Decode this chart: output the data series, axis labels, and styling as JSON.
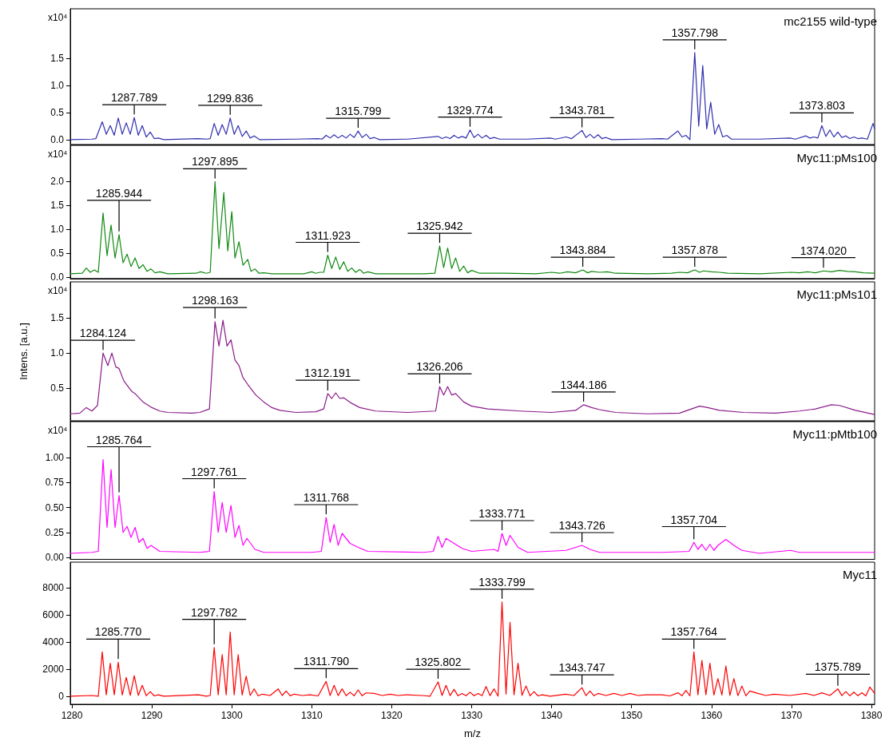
{
  "chart_data": [
    {
      "type": "line",
      "xlim": [
        1279.8,
        1380.4
      ],
      "xticks": [
        1280,
        1290,
        1300,
        1310,
        1320,
        1330,
        1340,
        1350,
        1360,
        1370,
        1380
      ],
      "ylim": [
        -0.09,
        2.42
      ],
      "yticks": [
        {
          "value": 0,
          "label": "0.0"
        },
        {
          "value": 0.5,
          "label": "0.5"
        },
        {
          "value": 1,
          "label": "1.0"
        },
        {
          "value": 1.5,
          "label": "1.5"
        }
      ],
      "tick_labels": "y",
      "series": [
        {
          "name": "mc2155 wild-type",
          "color": "#3030b0",
          "x": [
            1279.8,
            1282.5,
            1283.0,
            1283.8,
            1284.3,
            1284.8,
            1285.3,
            1285.8,
            1286.3,
            1286.8,
            1287.3,
            1287.8,
            1288.3,
            1288.8,
            1289.3,
            1289.8,
            1290.3,
            1290.8,
            1291.5,
            1295.8,
            1296.8,
            1297.3,
            1297.8,
            1298.3,
            1298.8,
            1299.3,
            1299.8,
            1300.3,
            1300.8,
            1301.3,
            1301.8,
            1302.3,
            1302.8,
            1303.5,
            1308,
            1310.8,
            1311.3,
            1311.8,
            1312.3,
            1312.8,
            1313.3,
            1313.8,
            1314.3,
            1314.8,
            1315.3,
            1315.8,
            1316.3,
            1316.8,
            1317.3,
            1317.8,
            1318.5,
            1322,
            1325.8,
            1326.3,
            1326.8,
            1327.3,
            1327.8,
            1328.3,
            1328.8,
            1329.3,
            1329.8,
            1330.3,
            1330.8,
            1331.3,
            1331.8,
            1332.3,
            1332.8,
            1333.5,
            1337,
            1339.8,
            1340.5,
            1341.8,
            1342.5,
            1343.8,
            1344.3,
            1344.8,
            1345.3,
            1345.8,
            1346.3,
            1346.8,
            1347.5,
            1351,
            1353.8,
            1354.5,
            1355.8,
            1356.3,
            1356.8,
            1357.3,
            1357.9,
            1358.4,
            1358.9,
            1359.4,
            1359.9,
            1360.4,
            1360.9,
            1361.4,
            1361.9,
            1362.5,
            1366,
            1369.8,
            1370.5,
            1371.8,
            1372.3,
            1372.8,
            1373.3,
            1373.8,
            1374.3,
            1374.8,
            1375.3,
            1375.8,
            1376.3,
            1376.8,
            1377.3,
            1377.8,
            1378.3,
            1378.8,
            1379.5,
            1380.2,
            1380.4
          ],
          "values": [
            0,
            0.01,
            0.02,
            0.33,
            0.1,
            0.26,
            0.08,
            0.4,
            0.1,
            0.31,
            0.1,
            0.41,
            0.08,
            0.26,
            0.05,
            0.14,
            0.02,
            0.03,
            0,
            0.02,
            0.01,
            0.02,
            0.3,
            0.08,
            0.28,
            0.1,
            0.4,
            0.1,
            0.26,
            0.06,
            0.16,
            0.03,
            0.07,
            0,
            0.01,
            0.02,
            0.01,
            0.08,
            0.03,
            0.09,
            0.03,
            0.08,
            0.03,
            0.1,
            0.04,
            0.16,
            0.04,
            0.1,
            0.02,
            0.04,
            0,
            0.01,
            0.06,
            0.02,
            0.05,
            0.02,
            0.08,
            0.03,
            0.06,
            0.03,
            0.18,
            0.04,
            0.1,
            0.03,
            0.08,
            0.02,
            0.04,
            0.01,
            0.01,
            0.03,
            0.01,
            0.05,
            0.02,
            0.17,
            0.04,
            0.1,
            0.03,
            0.09,
            0.02,
            0.04,
            0,
            0.01,
            0.02,
            0.01,
            0.16,
            0.05,
            0.08,
            0,
            1.61,
            0.25,
            1.37,
            0.2,
            0.69,
            0.1,
            0.28,
            0.05,
            0.08,
            0.01,
            0.01,
            0.03,
            0.01,
            0.07,
            0.03,
            0.05,
            0.03,
            0.26,
            0.06,
            0.18,
            0.05,
            0.14,
            0.04,
            0.07,
            0.02,
            0.05,
            0.02,
            0.03,
            0.01,
            0.3,
            0.2
          ]
        }
      ],
      "annotations": [
        "x10⁴",
        {
          "text": "1287.789",
          "x": 1287.8,
          "y": 0.41
        },
        {
          "text": "1299.836",
          "x": 1299.8,
          "y": 0.4
        },
        {
          "text": "1315.799",
          "x": 1315.8,
          "y": 0.16
        },
        {
          "text": "1329.774",
          "x": 1329.8,
          "y": 0.18
        },
        {
          "text": "1343.781",
          "x": 1343.8,
          "y": 0.17
        },
        {
          "text": "1357.798",
          "x": 1357.9,
          "y": 1.61
        },
        {
          "text": "1373.803",
          "x": 1373.8,
          "y": 0.26
        }
      ]
    },
    {
      "type": "line",
      "xlim": [
        1279.8,
        1380.4
      ],
      "xticks": [
        1280,
        1290,
        1300,
        1310,
        1320,
        1330,
        1340,
        1350,
        1360,
        1370,
        1380
      ],
      "ylim": [
        -0.03,
        2.76
      ],
      "yticks": [
        {
          "value": 0,
          "label": "0.0"
        },
        {
          "value": 0.5,
          "label": "0.5"
        },
        {
          "value": 1,
          "label": "1.0"
        },
        {
          "value": 1.5,
          "label": "1.5"
        },
        {
          "value": 2,
          "label": "2.0"
        }
      ],
      "tick_labels": "y",
      "series": [
        {
          "name": "Myc11:pMs100",
          "color": "#108a10",
          "x": [
            1279.8,
            1281.3,
            1281.8,
            1282.3,
            1282.8,
            1283.3,
            1283.9,
            1284.4,
            1284.9,
            1285.4,
            1285.9,
            1286.4,
            1286.9,
            1287.4,
            1287.9,
            1288.4,
            1288.9,
            1289.4,
            1289.9,
            1290.4,
            1291.0,
            1292,
            1295.5,
            1296.1,
            1296.8,
            1297.3,
            1297.9,
            1298.4,
            1299.0,
            1299.5,
            1300.0,
            1300.4,
            1300.9,
            1301.4,
            1302.0,
            1302.4,
            1302.9,
            1303.4,
            1304.0,
            1305,
            1309,
            1310,
            1310.5,
            1311,
            1311.5,
            1312,
            1312.5,
            1313,
            1313.5,
            1314,
            1314.5,
            1315,
            1315.5,
            1316,
            1316.5,
            1317,
            1318,
            1324,
            1325.4,
            1326,
            1326.5,
            1327,
            1327.5,
            1328,
            1328.5,
            1329,
            1329.5,
            1330,
            1331,
            1334,
            1338,
            1340,
            1341,
            1342,
            1343,
            1343.9,
            1344.5,
            1345,
            1346,
            1347,
            1348,
            1352,
            1355,
            1356,
            1357,
            1357.9,
            1358.5,
            1359,
            1360,
            1361,
            1362,
            1366,
            1370,
            1371,
            1372,
            1373,
            1374,
            1375,
            1376,
            1377,
            1378,
            1379,
            1380.4
          ],
          "values": [
            0.07,
            0.08,
            0.19,
            0.1,
            0.15,
            0.1,
            1.34,
            0.45,
            1.09,
            0.4,
            0.89,
            0.3,
            0.48,
            0.22,
            0.4,
            0.18,
            0.26,
            0.12,
            0.17,
            0.09,
            0.11,
            0.07,
            0.08,
            0.11,
            0.08,
            0.1,
            2.0,
            0.6,
            1.77,
            0.55,
            1.37,
            0.4,
            0.74,
            0.25,
            0.37,
            0.12,
            0.17,
            0.08,
            0.09,
            0.07,
            0.07,
            0.11,
            0.08,
            0.1,
            0.1,
            0.46,
            0.18,
            0.42,
            0.16,
            0.32,
            0.12,
            0.19,
            0.1,
            0.16,
            0.08,
            0.11,
            0.07,
            0.07,
            0.08,
            0.65,
            0.2,
            0.61,
            0.18,
            0.4,
            0.12,
            0.23,
            0.09,
            0.14,
            0.08,
            0.08,
            0.07,
            0.1,
            0.08,
            0.11,
            0.09,
            0.15,
            0.09,
            0.12,
            0.1,
            0.11,
            0.08,
            0.07,
            0.08,
            0.1,
            0.09,
            0.15,
            0.1,
            0.13,
            0.11,
            0.1,
            0.08,
            0.07,
            0.1,
            0.09,
            0.11,
            0.09,
            0.13,
            0.11,
            0.14,
            0.12,
            0.11,
            0.09,
            0.08
          ]
        }
      ],
      "annotations": [
        "x10⁴",
        {
          "text": "1285.944",
          "x": 1285.9,
          "y": 0.89
        },
        {
          "text": "1297.895",
          "x": 1297.9,
          "y": 2.0
        },
        {
          "text": "1311.923",
          "x": 1312,
          "y": 0.46
        },
        {
          "text": "1325.942",
          "x": 1326,
          "y": 0.65
        },
        {
          "text": "1343.884",
          "x": 1343.9,
          "y": 0.15
        },
        {
          "text": "1357.878",
          "x": 1357.9,
          "y": 0.15
        },
        {
          "text": "1374.020",
          "x": 1374,
          "y": 0.13
        }
      ]
    },
    {
      "type": "line",
      "xlim": [
        1279.8,
        1380.4
      ],
      "xticks": [
        1280,
        1290,
        1300,
        1310,
        1320,
        1330,
        1340,
        1350,
        1360,
        1370,
        1380
      ],
      "ylim": [
        0.03,
        2.02
      ],
      "yticks": [
        {
          "value": 0.5,
          "label": "0.5"
        },
        {
          "value": 1,
          "label": "1.0"
        },
        {
          "value": 1.5,
          "label": "1.5"
        }
      ],
      "tick_labels": "y",
      "ylabel": "Intens. [a.u.]",
      "series": [
        {
          "name": "Myc11:pMs101",
          "color": "#8a1a8a",
          "x": [
            1279.8,
            1281,
            1281.8,
            1282.5,
            1283.2,
            1283.9,
            1284.5,
            1285.0,
            1285.5,
            1285.9,
            1286.5,
            1286.9,
            1287.5,
            1287.9,
            1288.9,
            1290,
            1291,
            1292,
            1295,
            1296,
            1297.2,
            1297.9,
            1298.4,
            1298.9,
            1299.4,
            1299.9,
            1300.4,
            1300.9,
            1301.4,
            1302,
            1303,
            1304,
            1305,
            1306,
            1308,
            1310.5,
            1311.5,
            1312,
            1312.5,
            1313,
            1313.5,
            1314,
            1315,
            1316,
            1318,
            1322,
            1325.5,
            1326,
            1326.5,
            1327,
            1327.5,
            1328,
            1329,
            1330,
            1332,
            1336,
            1340,
            1343,
            1344,
            1345,
            1346,
            1348,
            1352,
            1356,
            1357.5,
            1358.5,
            1359.5,
            1361,
            1364,
            1368,
            1371,
            1373,
            1375,
            1376,
            1378,
            1380.4
          ],
          "values": [
            0.13,
            0.14,
            0.22,
            0.17,
            0.25,
            1.0,
            0.82,
            1.0,
            0.8,
            0.78,
            0.6,
            0.54,
            0.45,
            0.42,
            0.3,
            0.22,
            0.17,
            0.15,
            0.14,
            0.15,
            0.2,
            1.45,
            1.1,
            1.47,
            1.1,
            1.19,
            0.9,
            0.82,
            0.65,
            0.55,
            0.4,
            0.3,
            0.22,
            0.18,
            0.15,
            0.16,
            0.2,
            0.42,
            0.35,
            0.43,
            0.35,
            0.36,
            0.28,
            0.22,
            0.17,
            0.15,
            0.17,
            0.52,
            0.4,
            0.52,
            0.4,
            0.42,
            0.3,
            0.24,
            0.2,
            0.17,
            0.15,
            0.18,
            0.26,
            0.22,
            0.19,
            0.15,
            0.13,
            0.14,
            0.2,
            0.24,
            0.22,
            0.18,
            0.15,
            0.14,
            0.17,
            0.2,
            0.26,
            0.25,
            0.18,
            0.12
          ]
        }
      ],
      "annotations": [
        "x10⁴",
        {
          "text": "1284.124",
          "x": 1283.9,
          "y": 1.0
        },
        {
          "text": "1298.163",
          "x": 1297.9,
          "y": 1.45
        },
        {
          "text": "1312.191",
          "x": 1312,
          "y": 0.42
        },
        {
          "text": "1326.206",
          "x": 1326,
          "y": 0.52
        },
        {
          "text": "1344.186",
          "x": 1344,
          "y": 0.26
        }
      ]
    },
    {
      "type": "line",
      "xlim": [
        1279.8,
        1380.4
      ],
      "xticks": [
        1280,
        1290,
        1300,
        1310,
        1320,
        1330,
        1340,
        1350,
        1360,
        1370,
        1380
      ],
      "ylim": [
        -0.02,
        1.36
      ],
      "yticks": [
        {
          "value": 0,
          "label": "0.00"
        },
        {
          "value": 0.25,
          "label": "0.25"
        },
        {
          "value": 0.5,
          "label": "0.50"
        },
        {
          "value": 0.75,
          "label": "0.75"
        },
        {
          "value": 1,
          "label": "1.00"
        }
      ],
      "tick_labels": "y",
      "series": [
        {
          "name": "Myc11:pMtb100",
          "color": "#ff00ff",
          "x": [
            1279.8,
            1282.5,
            1283.3,
            1283.9,
            1284.4,
            1284.9,
            1285.4,
            1285.9,
            1286.4,
            1286.9,
            1287.4,
            1287.9,
            1288.4,
            1288.9,
            1289.4,
            1289.9,
            1291,
            1296,
            1297.2,
            1297.8,
            1298.3,
            1298.8,
            1299.3,
            1299.9,
            1300.4,
            1300.9,
            1301.4,
            1301.9,
            1302.9,
            1304,
            1310,
            1311.2,
            1311.8,
            1312.3,
            1312.8,
            1313.3,
            1313.8,
            1314.8,
            1315.8,
            1317,
            1324,
            1325.2,
            1325.8,
            1326.3,
            1326.8,
            1327.8,
            1328.8,
            1330,
            1332.8,
            1333.3,
            1333.8,
            1334.3,
            1334.8,
            1335.8,
            1337,
            1341.8,
            1343.8,
            1344.8,
            1346,
            1354,
            1357.2,
            1357.8,
            1358.3,
            1358.8,
            1359.3,
            1359.8,
            1360.3,
            1360.8,
            1361.8,
            1362.8,
            1363.8,
            1366,
            1369.9,
            1371,
            1374,
            1380.4
          ],
          "values": [
            0.04,
            0.05,
            0.06,
            0.98,
            0.3,
            0.88,
            0.3,
            0.62,
            0.25,
            0.31,
            0.2,
            0.3,
            0.15,
            0.19,
            0.09,
            0.12,
            0.06,
            0.05,
            0.06,
            0.66,
            0.25,
            0.55,
            0.25,
            0.52,
            0.2,
            0.32,
            0.12,
            0.19,
            0.08,
            0.05,
            0.05,
            0.06,
            0.4,
            0.15,
            0.33,
            0.12,
            0.24,
            0.14,
            0.1,
            0.06,
            0.05,
            0.06,
            0.21,
            0.1,
            0.19,
            0.14,
            0.09,
            0.06,
            0.08,
            0.06,
            0.24,
            0.12,
            0.22,
            0.1,
            0.05,
            0.07,
            0.12,
            0.08,
            0.05,
            0.05,
            0.06,
            0.15,
            0.08,
            0.13,
            0.07,
            0.13,
            0.07,
            0.12,
            0.18,
            0.12,
            0.07,
            0.04,
            0.07,
            0.05,
            0.05,
            0.05
          ]
        }
      ],
      "annotations": [
        "x10⁴",
        {
          "text": "1285.764",
          "x": 1285.9,
          "y": 0.62
        },
        {
          "text": "1297.761",
          "x": 1297.8,
          "y": 0.66
        },
        {
          "text": "1311.768",
          "x": 1311.8,
          "y": 0.4
        },
        {
          "text": "1333.771",
          "x": 1333.8,
          "y": 0.24
        },
        {
          "text": "1343.726",
          "x": 1343.8,
          "y": 0.12
        },
        {
          "text": "1357.704",
          "x": 1357.8,
          "y": 0.15
        }
      ]
    },
    {
      "type": "line",
      "xlim": [
        1279.8,
        1380.4
      ],
      "xticks": [
        1280,
        1290,
        1300,
        1310,
        1320,
        1330,
        1340,
        1350,
        1360,
        1370,
        1380
      ],
      "ylim": [
        -600,
        9900
      ],
      "yticks": [
        0,
        2000,
        4000,
        6000,
        8000
      ],
      "xlabel": "m/z",
      "series": [
        {
          "name": "Myc11",
          "color": "#ff0000",
          "x": [
            1279.8,
            1282.5,
            1283.3,
            1283.8,
            1284.3,
            1284.8,
            1285.3,
            1285.8,
            1286.3,
            1286.8,
            1287.3,
            1287.8,
            1288.3,
            1288.8,
            1289.3,
            1289.8,
            1290.3,
            1290.8,
            1291.5,
            1295.8,
            1296.8,
            1297.3,
            1297.8,
            1298.3,
            1298.8,
            1299.3,
            1299.8,
            1300.3,
            1300.8,
            1301.3,
            1301.8,
            1302.3,
            1302.8,
            1303.3,
            1303.8,
            1304.8,
            1305.8,
            1306.3,
            1306.8,
            1307.3,
            1307.8,
            1308.8,
            1309.8,
            1310.8,
            1311.8,
            1312.3,
            1312.8,
            1313.3,
            1313.8,
            1314.3,
            1314.8,
            1315.3,
            1315.8,
            1316.3,
            1316.8,
            1317.8,
            1318.8,
            1319.8,
            1320.8,
            1321.8,
            1323.8,
            1324.8,
            1325.8,
            1326.3,
            1326.8,
            1327.3,
            1327.8,
            1328.3,
            1328.8,
            1329.3,
            1329.8,
            1330.3,
            1330.8,
            1331.3,
            1331.8,
            1332.3,
            1332.8,
            1333.3,
            1333.8,
            1334.3,
            1334.8,
            1335.3,
            1335.8,
            1336.3,
            1336.8,
            1337.3,
            1337.8,
            1338.3,
            1338.8,
            1339.8,
            1341.8,
            1342.8,
            1343.8,
            1344.3,
            1344.8,
            1345.3,
            1345.8,
            1346.8,
            1347.8,
            1348.8,
            1349.8,
            1350.8,
            1351.8,
            1353.8,
            1354.8,
            1355.8,
            1356.3,
            1356.8,
            1357.3,
            1357.8,
            1358.3,
            1358.8,
            1359.3,
            1359.8,
            1360.3,
            1360.8,
            1361.3,
            1361.8,
            1362.3,
            1362.8,
            1363.3,
            1363.8,
            1364.3,
            1364.8,
            1365.8,
            1366.8,
            1367.8,
            1369.8,
            1371.8,
            1372.8,
            1373.8,
            1374.8,
            1375.8,
            1376.3,
            1376.8,
            1377.3,
            1377.8,
            1378.3,
            1378.8,
            1379.3,
            1379.8,
            1380.4
          ],
          "values": [
            0,
            50,
            0,
            3270,
            100,
            2430,
            100,
            2510,
            80,
            1380,
            60,
            1510,
            50,
            800,
            30,
            340,
            20,
            100,
            0,
            100,
            0,
            50,
            3600,
            100,
            3060,
            100,
            4730,
            100,
            3060,
            80,
            1470,
            50,
            540,
            20,
            150,
            50,
            540,
            50,
            380,
            30,
            150,
            50,
            100,
            20,
            1090,
            50,
            800,
            40,
            540,
            30,
            290,
            30,
            460,
            30,
            240,
            200,
            50,
            150,
            50,
            100,
            50,
            0,
            1050,
            50,
            800,
            40,
            500,
            30,
            200,
            30,
            290,
            30,
            200,
            30,
            710,
            40,
            540,
            0,
            6960,
            150,
            5450,
            100,
            2430,
            60,
            750,
            30,
            340,
            20,
            100,
            0,
            150,
            50,
            630,
            40,
            380,
            30,
            200,
            50,
            200,
            50,
            200,
            50,
            100,
            100,
            20,
            250,
            30,
            420,
            20,
            3270,
            100,
            2640,
            100,
            2430,
            80,
            1300,
            80,
            2220,
            60,
            1300,
            40,
            750,
            30,
            380,
            200,
            50,
            150,
            50,
            200,
            50,
            250,
            50,
            540,
            40,
            340,
            30,
            300,
            30,
            250,
            20,
            670,
            200
          ]
        }
      ],
      "annotations": [
        {
          "text": "1285.770",
          "x": 1285.8,
          "y": 2510
        },
        {
          "text": "1297.782",
          "x": 1297.8,
          "y": 3600
        },
        {
          "text": "1311.790",
          "x": 1311.8,
          "y": 1090
        },
        {
          "text": "1325.802",
          "x": 1325.8,
          "y": 1050
        },
        {
          "text": "1333.799",
          "x": 1333.8,
          "y": 6960
        },
        {
          "text": "1343.747",
          "x": 1343.8,
          "y": 630
        },
        {
          "text": "1357.764",
          "x": 1357.8,
          "y": 3270
        },
        {
          "text": "1375.789",
          "x": 1375.8,
          "y": 540
        }
      ]
    }
  ]
}
